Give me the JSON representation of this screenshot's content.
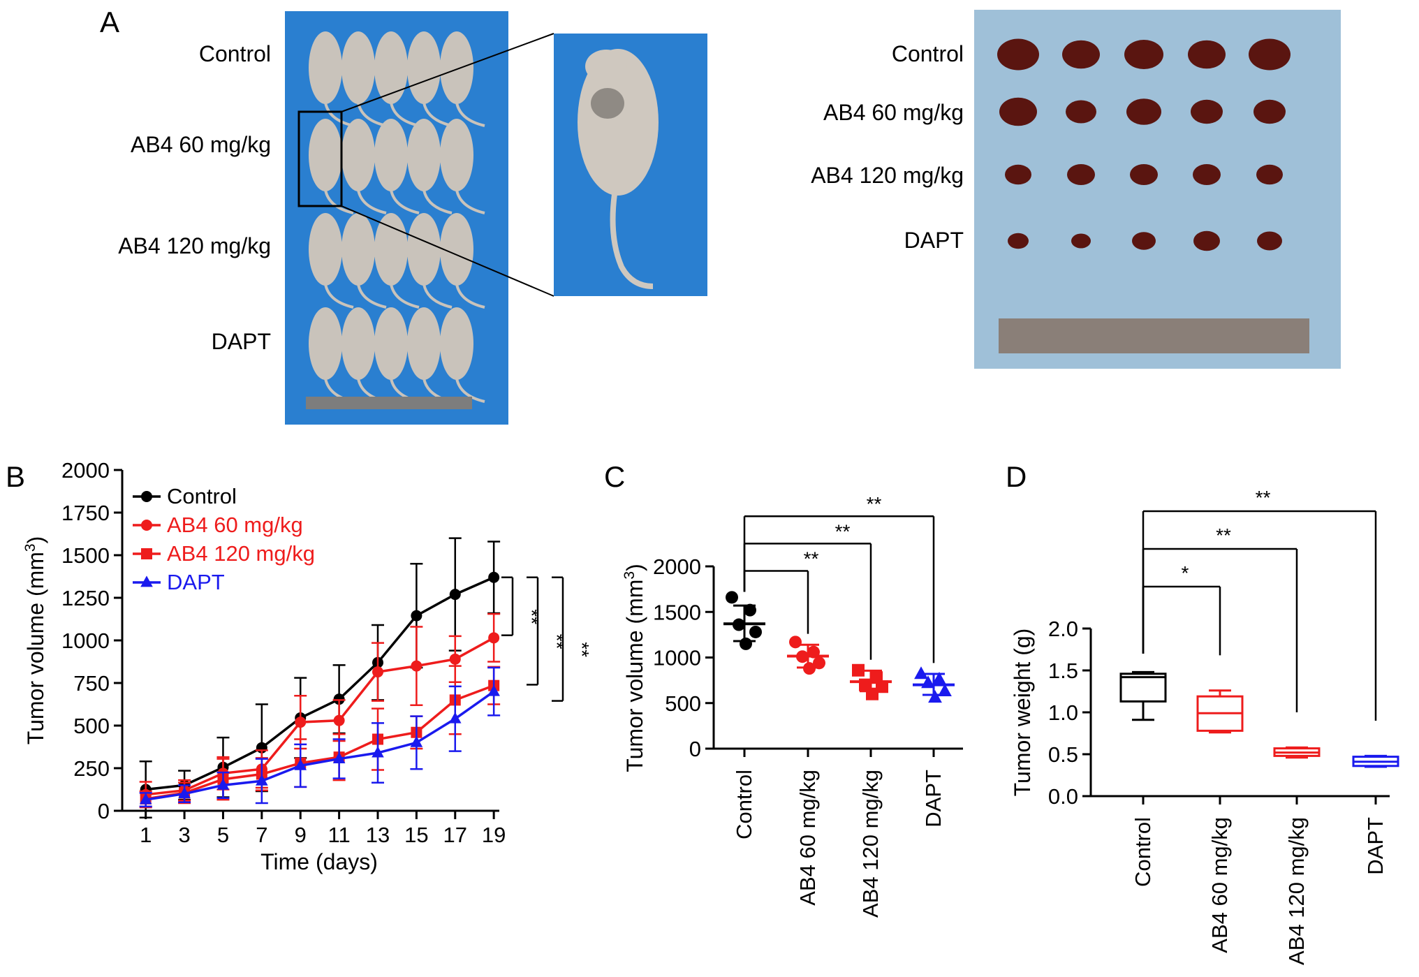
{
  "panel_a": {
    "label": "A",
    "left_photo": {
      "groups": [
        "Control",
        "AB4 60 mg/kg",
        "AB4 120 mg/kg",
        "DAPT"
      ]
    },
    "right_photo": {
      "groups": [
        "Control",
        "AB4 60 mg/kg",
        "AB4 120 mg/kg",
        "DAPT"
      ]
    },
    "colors": {
      "mice_background": "#2a7fd0",
      "tumor_background": "#9fc0d8",
      "tumor": "#5a1510",
      "mouse": "#c9c3bb"
    }
  },
  "chart_data": [
    {
      "panel": "B",
      "type": "line",
      "xlabel": "Time (days)",
      "ylabel": "Tumor volume (mm",
      "ylabel_sup": "3",
      "ylabel_tail": ")",
      "x": [
        1,
        3,
        5,
        7,
        9,
        11,
        13,
        15,
        17,
        19
      ],
      "xticks": [
        "1",
        "3",
        "5",
        "7",
        "9",
        "11",
        "13",
        "15",
        "17",
        "19"
      ],
      "yticks": [
        "0",
        "250",
        "500",
        "750",
        "1000",
        "1250",
        "1500",
        "1750",
        "2000"
      ],
      "ylim": [
        0,
        2000
      ],
      "legend_position": "top-left",
      "series": [
        {
          "name": "Control",
          "color": "#000000",
          "marker": "circle",
          "values": [
            125,
            150,
            255,
            370,
            545,
            655,
            870,
            1145,
            1270,
            1370
          ],
          "err": [
            165,
            85,
            175,
            255,
            235,
            200,
            220,
            305,
            330,
            210
          ]
        },
        {
          "name": "AB4 60 mg/kg",
          "color": "#ee1c1c",
          "marker": "circle",
          "values": [
            95,
            120,
            220,
            245,
            520,
            530,
            815,
            850,
            890,
            1015
          ],
          "err": [
            75,
            60,
            95,
            110,
            155,
            120,
            170,
            230,
            135,
            140
          ]
        },
        {
          "name": "AB4 120 mg/kg",
          "color": "#ee1c1c",
          "marker": "square",
          "values": [
            70,
            105,
            185,
            215,
            280,
            315,
            420,
            460,
            650,
            735
          ],
          "err": [
            45,
            60,
            120,
            95,
            140,
            135,
            180,
            95,
            200,
            110
          ]
        },
        {
          "name": "DAPT",
          "color": "#1a1aee",
          "marker": "triangle",
          "values": [
            65,
            100,
            150,
            175,
            265,
            305,
            340,
            400,
            540,
            700
          ],
          "err": [
            40,
            50,
            75,
            130,
            125,
            115,
            175,
            155,
            190,
            140
          ]
        }
      ],
      "significance": [
        {
          "label": "**",
          "from": 1030,
          "to": 1370
        },
        {
          "label": "**",
          "from": 740,
          "to": 1370
        },
        {
          "label": "**",
          "from": 645,
          "to": 1370
        }
      ]
    },
    {
      "panel": "C",
      "type": "scatter",
      "ylabel": "Tumor volume (mm",
      "ylabel_sup": "3",
      "ylabel_tail": ")",
      "categories": [
        "Control",
        "AB4 60 mg/kg",
        "AB4 120 mg/kg",
        "DAPT"
      ],
      "yticks": [
        "0",
        "500",
        "1000",
        "1500",
        "2000"
      ],
      "ylim": [
        0,
        2000
      ],
      "groups": [
        {
          "name": "Control",
          "color": "#000000",
          "marker": "circle",
          "points": [
            1660,
            1520,
            1360,
            1280,
            1150
          ],
          "mean": 1370,
          "sd_low": 1180,
          "sd_high": 1570
        },
        {
          "name": "AB4 60 mg/kg",
          "color": "#ee1c1c",
          "marker": "circle",
          "points": [
            1170,
            1060,
            1010,
            940,
            880
          ],
          "mean": 1015,
          "sd_low": 890,
          "sd_high": 1140
        },
        {
          "name": "AB4 120 mg/kg",
          "color": "#ee1c1c",
          "marker": "square",
          "points": [
            860,
            780,
            700,
            680,
            600
          ],
          "mean": 735,
          "sd_low": 630,
          "sd_high": 855
        },
        {
          "name": "DAPT",
          "color": "#1a1aee",
          "marker": "triangle",
          "points": [
            820,
            760,
            720,
            630,
            560
          ],
          "mean": 700,
          "sd_low": 590,
          "sd_high": 820
        }
      ],
      "significance": [
        {
          "label": "**",
          "from": "Control",
          "to": "AB4 60 mg/kg",
          "level": 1950
        },
        {
          "label": "**",
          "from": "Control",
          "to": "AB4 120 mg/kg",
          "level": 2250
        },
        {
          "label": "**",
          "from": "Control",
          "to": "DAPT",
          "level": 2550
        }
      ]
    },
    {
      "panel": "D",
      "type": "box",
      "ylabel": "Tumor weight (g)",
      "categories": [
        "Control",
        "AB4 60 mg/kg",
        "AB4 120 mg/kg",
        "DAPT"
      ],
      "yticks": [
        "0.0",
        "0.5",
        "1.0",
        "1.5",
        "2.0"
      ],
      "ylim": [
        0,
        2
      ],
      "boxes": [
        {
          "name": "Control",
          "color": "#000000",
          "min": 0.91,
          "q1": 1.13,
          "median": 1.42,
          "q3": 1.46,
          "max": 1.48
        },
        {
          "name": "AB4 60 mg/kg",
          "color": "#ee1c1c",
          "min": 0.76,
          "q1": 0.78,
          "median": 0.99,
          "q3": 1.19,
          "max": 1.26
        },
        {
          "name": "AB4 120 mg/kg",
          "color": "#ee1c1c",
          "min": 0.46,
          "q1": 0.48,
          "median": 0.52,
          "q3": 0.57,
          "max": 0.58
        },
        {
          "name": "DAPT",
          "color": "#1a1aee",
          "min": 0.35,
          "q1": 0.36,
          "median": 0.41,
          "q3": 0.47,
          "max": 0.48
        }
      ],
      "significance": [
        {
          "label": "*",
          "from": "Control",
          "to": "AB4 60 mg/kg",
          "level": 2.5
        },
        {
          "label": "**",
          "from": "Control",
          "to": "AB4 120 mg/kg",
          "level": 2.95
        },
        {
          "label": "**",
          "from": "Control",
          "to": "DAPT",
          "level": 3.4
        }
      ]
    }
  ]
}
